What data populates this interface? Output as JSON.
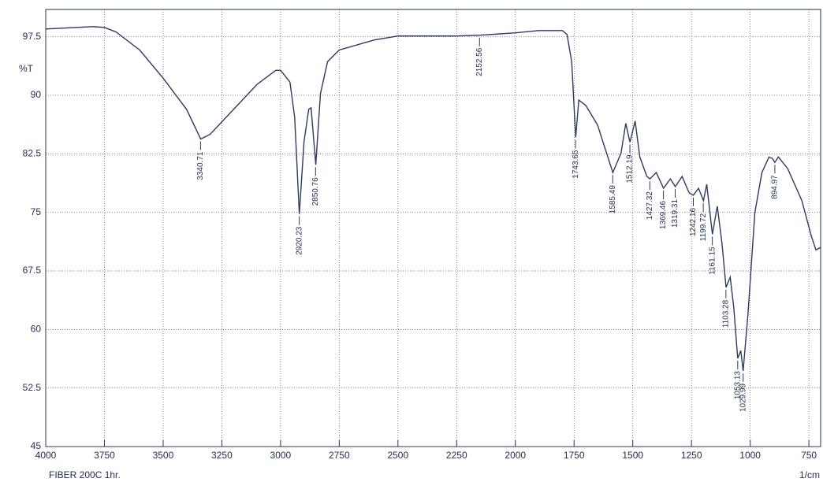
{
  "chart_data": {
    "type": "line",
    "caption": "FIBER 200C 1hr.",
    "x_label": "1/cm",
    "y_label": "%T",
    "xlim": [
      4000,
      700
    ],
    "ylim": [
      45,
      101
    ],
    "xticks": [
      4000,
      3750,
      3500,
      3250,
      3000,
      2750,
      2500,
      2250,
      2000,
      1750,
      1500,
      1250,
      1000,
      750
    ],
    "yticks": [
      45,
      52.5,
      60,
      67.5,
      75,
      82.5,
      90,
      97.5
    ],
    "grid": true,
    "color": "#2b3a5e",
    "x": [
      4000,
      3800,
      3750,
      3700,
      3600,
      3500,
      3400,
      3340,
      3300,
      3200,
      3100,
      3020,
      3000,
      2960,
      2940,
      2920,
      2900,
      2880,
      2870,
      2850,
      2830,
      2800,
      2750,
      2600,
      2500,
      2400,
      2250,
      2152,
      2000,
      1900,
      1800,
      1780,
      1760,
      1743,
      1730,
      1700,
      1650,
      1585,
      1550,
      1530,
      1512,
      1490,
      1470,
      1440,
      1427,
      1400,
      1369,
      1340,
      1319,
      1290,
      1260,
      1242,
      1220,
      1199,
      1185,
      1161,
      1140,
      1120,
      1103,
      1085,
      1070,
      1053,
      1040,
      1030,
      1010,
      980,
      950,
      920,
      905,
      895,
      880,
      840,
      780,
      740,
      720,
      700
    ],
    "y": [
      98.5,
      98.8,
      98.7,
      98.1,
      95.8,
      92.2,
      88.2,
      84.4,
      85.0,
      88.2,
      91.4,
      93.2,
      93.2,
      91.7,
      87.2,
      74.8,
      84.1,
      88.2,
      88.4,
      81.1,
      90.2,
      94.3,
      95.8,
      97.1,
      97.6,
      97.6,
      97.6,
      97.7,
      98.0,
      98.3,
      98.3,
      97.8,
      94.3,
      84.6,
      89.4,
      88.7,
      86.2,
      80.1,
      82.6,
      86.4,
      84.0,
      86.7,
      82.1,
      79.6,
      79.3,
      80.1,
      78.1,
      79.3,
      78.3,
      79.6,
      77.5,
      77.2,
      78.1,
      76.5,
      78.6,
      72.2,
      75.8,
      71.0,
      65.4,
      66.7,
      62.8,
      56.3,
      57.3,
      54.7,
      61.8,
      75.0,
      80.1,
      82.1,
      81.9,
      81.4,
      82.1,
      80.6,
      76.5,
      72.0,
      70.2,
      70.5
    ],
    "peaks": [
      {
        "x": 3340.71,
        "y": 84.4
      },
      {
        "x": 2920.23,
        "y": 74.8
      },
      {
        "x": 2850.76,
        "y": 81.1
      },
      {
        "x": 2152.56,
        "y": 97.7
      },
      {
        "x": 1743.65,
        "y": 84.6
      },
      {
        "x": 1585.49,
        "y": 80.1
      },
      {
        "x": 1512.19,
        "y": 84.0
      },
      {
        "x": 1427.32,
        "y": 79.3
      },
      {
        "x": 1369.46,
        "y": 78.1
      },
      {
        "x": 1319.31,
        "y": 78.3
      },
      {
        "x": 1242.16,
        "y": 77.2
      },
      {
        "x": 1199.72,
        "y": 76.5
      },
      {
        "x": 1161.15,
        "y": 72.2
      },
      {
        "x": 1103.28,
        "y": 65.4
      },
      {
        "x": 1053.13,
        "y": 56.3
      },
      {
        "x": 1029.99,
        "y": 54.7
      },
      {
        "x": 894.97,
        "y": 81.4
      }
    ]
  }
}
